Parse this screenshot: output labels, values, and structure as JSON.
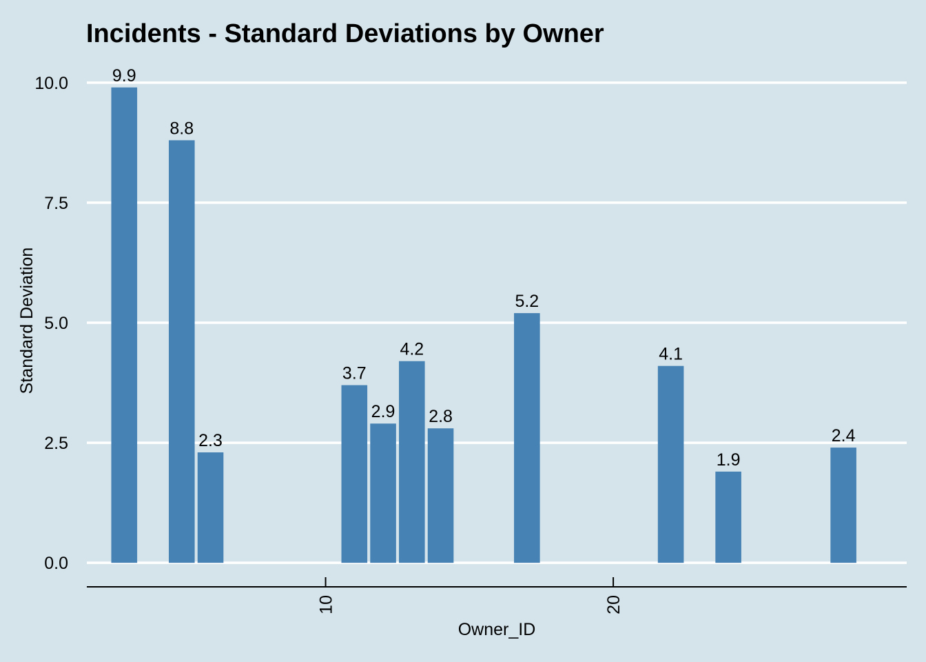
{
  "chart_data": {
    "type": "bar",
    "title": "Incidents - Standard Deviations by Owner",
    "xlabel": "Owner_ID",
    "ylabel": "Standard Deviation",
    "bar_color": "#4682b4",
    "background_color": "#d5e4eb",
    "grid": "horizontal major, white",
    "x": [
      3,
      5,
      6,
      11,
      12,
      13,
      14,
      17,
      22,
      24,
      28
    ],
    "values": [
      9.9,
      8.8,
      2.3,
      3.7,
      2.9,
      4.2,
      2.8,
      5.2,
      4.1,
      1.9,
      2.4
    ],
    "value_labels": [
      "9.9",
      "8.8",
      "2.3",
      "3.7",
      "2.9",
      "4.2",
      "2.8",
      "5.2",
      "4.1",
      "1.9",
      "2.4"
    ],
    "xlim": [
      1.7,
      30.2
    ],
    "ylim": [
      -0.5,
      10.5
    ],
    "x_ticks": [
      10,
      20
    ],
    "x_tick_labels": [
      "10",
      "20"
    ],
    "y_ticks": [
      0,
      2.5,
      5,
      7.5,
      10
    ],
    "y_tick_labels": [
      "0.0",
      "2.5",
      "5.0",
      "7.5",
      "10.0"
    ]
  }
}
